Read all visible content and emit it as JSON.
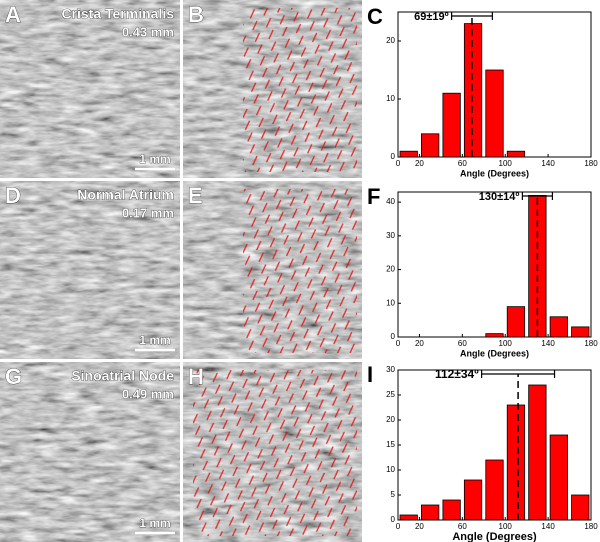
{
  "image_panels": [
    {
      "left": {
        "letter": "A",
        "title": "Crista Terminalis",
        "depth": "0.43 mm",
        "scale": "1 mm"
      },
      "right": {
        "letter": "B"
      }
    },
    {
      "left": {
        "letter": "D",
        "title": "Normal Atrium",
        "depth": "0.17 mm",
        "scale": "1 mm"
      },
      "right": {
        "letter": "E"
      }
    },
    {
      "left": {
        "letter": "G",
        "title": "Sinoatrial Node",
        "depth": "0.49 mm",
        "scale": "1 mm"
      },
      "right": {
        "letter": "H"
      }
    }
  ],
  "chart_data": [
    {
      "type": "histogram",
      "panel_label": "C",
      "x_label": "Angle (Degrees)",
      "annotation": "69±19º",
      "mean": 69,
      "std": 19,
      "bins": [
        0,
        20,
        40,
        60,
        80,
        100,
        120,
        140,
        160,
        180
      ],
      "values": [
        1,
        4,
        11,
        23,
        15,
        1,
        0,
        0,
        0
      ],
      "color": "#ff0000",
      "xlim": [
        0,
        180
      ],
      "xticks": [
        0,
        20,
        60,
        100,
        140,
        180
      ],
      "ylim": [
        0,
        25
      ],
      "yticks": [
        0,
        10,
        20
      ]
    },
    {
      "type": "histogram",
      "panel_label": "F",
      "x_label": "Angle (Degrees)",
      "annotation": "130±14º",
      "mean": 130,
      "std": 14,
      "bins": [
        0,
        20,
        40,
        60,
        80,
        100,
        120,
        140,
        160,
        180
      ],
      "values": [
        0,
        0,
        0,
        0,
        1,
        9,
        42,
        6,
        3
      ],
      "color": "#ff0000",
      "xlim": [
        0,
        180
      ],
      "xticks": [
        0,
        20,
        60,
        100,
        140,
        180
      ],
      "ylim": [
        0,
        43
      ],
      "yticks": [
        0,
        10,
        20,
        30,
        40
      ]
    },
    {
      "type": "histogram",
      "panel_label": "I",
      "x_label": "Angle (Degrees)",
      "annotation": "112±34º",
      "mean": 112,
      "std": 34,
      "bins": [
        0,
        20,
        40,
        60,
        80,
        100,
        120,
        140,
        160,
        180
      ],
      "values": [
        1,
        3,
        4,
        8,
        12,
        23,
        27,
        17,
        5
      ],
      "color": "#ff0000",
      "xlim": [
        0,
        180
      ],
      "xticks": [
        0,
        20,
        60,
        100,
        140,
        180
      ],
      "ylim": [
        0,
        30
      ],
      "yticks": [
        0,
        5,
        10,
        15,
        20,
        25,
        30
      ]
    }
  ]
}
